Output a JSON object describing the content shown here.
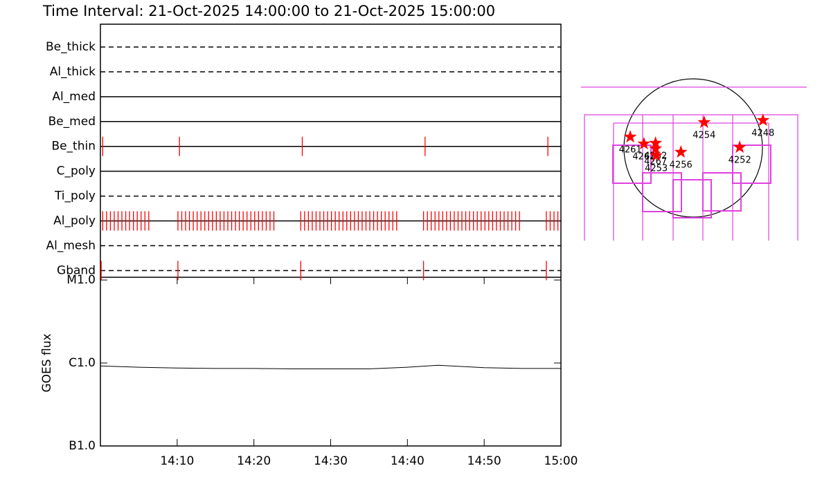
{
  "chart_data": [
    {
      "type": "timeline",
      "title": "Time Interval: 21-Oct-2025 14:00:00 to 21-Oct-2025 15:00:00",
      "categories": [
        "Be_thick",
        "Al_thick",
        "Al_med",
        "Be_med",
        "Be_thin",
        "C_poly",
        "Ti_poly",
        "Al_poly",
        "Al_mesh",
        "Gband"
      ],
      "styles": [
        "dashed",
        "dashed",
        "solid",
        "solid",
        "solid",
        "solid",
        "dashed",
        "solid",
        "dashed",
        "dashed"
      ],
      "events": [
        [],
        [],
        [],
        [],
        [
          0.3,
          10.3,
          26.3,
          42.3,
          58.3
        ],
        [],
        [],
        [
          0.3,
          0.8,
          1.3,
          1.8,
          2.3,
          2.8,
          3.3,
          3.8,
          4.3,
          4.8,
          5.3,
          5.8,
          6.3,
          10.1,
          10.6,
          11.1,
          11.6,
          12.1,
          12.6,
          13.1,
          13.6,
          14.1,
          14.6,
          15.1,
          15.6,
          16.1,
          16.6,
          17.1,
          17.6,
          18.1,
          18.6,
          19.1,
          19.6,
          20.1,
          20.6,
          21.1,
          21.6,
          22.1,
          22.6,
          26.1,
          26.6,
          27.1,
          27.6,
          28.1,
          28.6,
          29.1,
          29.6,
          30.1,
          30.6,
          31.1,
          31.6,
          32.1,
          32.6,
          33.1,
          33.6,
          34.1,
          34.6,
          35.1,
          35.6,
          36.1,
          36.6,
          37.1,
          37.6,
          38.1,
          38.6,
          42.1,
          42.6,
          43.1,
          43.6,
          44.1,
          44.6,
          45.1,
          45.6,
          46.1,
          46.6,
          47.1,
          47.6,
          48.1,
          48.6,
          49.1,
          49.6,
          50.1,
          50.6,
          51.1,
          51.6,
          52.1,
          52.6,
          53.1,
          53.6,
          54.1,
          54.6,
          58.1,
          58.6,
          59.1,
          59.6
        ],
        [],
        [
          0.1,
          10.1,
          26.1,
          42.1,
          58.1
        ]
      ],
      "xlim": [
        0,
        60
      ],
      "color": "#ff0000"
    },
    {
      "type": "line",
      "ylabel": "GOES flux",
      "x": [
        0,
        5,
        10,
        15,
        20,
        25,
        30,
        35,
        40,
        44,
        50,
        55,
        60
      ],
      "values": [
        9.2e-07,
        8.9e-07,
        8.7e-07,
        8.6e-07,
        8.6e-07,
        8.5e-07,
        8.5e-07,
        8.5e-07,
        8.9e-07,
        9.4e-07,
        8.8e-07,
        8.6e-07,
        8.6e-07
      ],
      "xlim": [
        0,
        60
      ],
      "xticks": [
        {
          "value": 10,
          "label": "14:10"
        },
        {
          "value": 20,
          "label": "14:20"
        },
        {
          "value": 30,
          "label": "14:30"
        },
        {
          "value": 40,
          "label": "14:40"
        },
        {
          "value": 50,
          "label": "14:50"
        },
        {
          "value": 60,
          "label": "15:00"
        }
      ],
      "ylim": [
        1e-07,
        1e-05
      ],
      "yticks": [
        {
          "value": 1e-05,
          "label": "M1.0"
        },
        {
          "value": 1e-06,
          "label": "C1.0"
        },
        {
          "value": 1e-07,
          "label": "B1.0"
        }
      ],
      "log_y": true,
      "color": "#000000"
    },
    {
      "type": "map",
      "labels": [
        "4261",
        "4263",
        "4262",
        "4267",
        "4253",
        "4256",
        "4254",
        "4248",
        "4252"
      ],
      "x": [
        -930,
        -730,
        -560,
        -560,
        -550,
        -190,
        150,
        1010,
        670
      ],
      "y": [
        160,
        60,
        70,
        -10,
        -110,
        -60,
        370,
        400,
        10
      ],
      "xlim": [
        -1650,
        1650
      ],
      "ylim": [
        -1460,
        1440
      ],
      "color": "#ff0000"
    }
  ]
}
